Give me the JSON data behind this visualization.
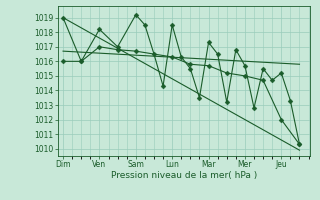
{
  "background_color": "#c8e8d8",
  "grid_color": "#99ccbb",
  "line_color": "#1a5c2a",
  "xlabel": "Pression niveau de la mer( hPa )",
  "ylim": [
    1009.5,
    1019.8
  ],
  "yticks": [
    1010,
    1011,
    1012,
    1013,
    1014,
    1015,
    1016,
    1017,
    1018,
    1019
  ],
  "day_labels": [
    "Dim",
    "Ven",
    "Sam",
    "Lun",
    "Mar",
    "Mer",
    "Jeu"
  ],
  "day_positions": [
    0,
    1,
    2,
    3,
    4,
    5,
    6
  ],
  "xlim": [
    -0.15,
    6.8
  ],
  "line1_x": [
    0.0,
    0.5,
    1.0,
    1.5,
    2.0,
    2.25,
    2.5,
    2.75,
    3.0,
    3.25,
    3.5,
    3.75,
    4.0,
    4.25,
    4.5,
    4.75,
    5.0,
    5.25,
    5.5,
    5.75,
    6.0,
    6.25,
    6.5
  ],
  "line1_y": [
    1019.0,
    1016.0,
    1018.2,
    1017.0,
    1019.2,
    1018.5,
    1016.5,
    1014.3,
    1018.5,
    1016.3,
    1015.5,
    1013.5,
    1017.3,
    1016.5,
    1013.2,
    1016.8,
    1015.7,
    1012.8,
    1015.5,
    1014.7,
    1015.2,
    1013.3,
    1010.3
  ],
  "line2_x": [
    0.0,
    0.5,
    1.0,
    1.5,
    2.0,
    3.0,
    3.5,
    4.0,
    4.5,
    5.0,
    5.5,
    6.0,
    6.5
  ],
  "line2_y": [
    1016.0,
    1016.0,
    1017.0,
    1016.8,
    1016.7,
    1016.3,
    1015.8,
    1015.7,
    1015.2,
    1015.0,
    1014.7,
    1012.0,
    1010.3
  ],
  "trend1_x": [
    0.0,
    6.5
  ],
  "trend1_y": [
    1019.0,
    1009.9
  ],
  "trend2_x": [
    0.0,
    6.5
  ],
  "trend2_y": [
    1016.7,
    1015.8
  ]
}
